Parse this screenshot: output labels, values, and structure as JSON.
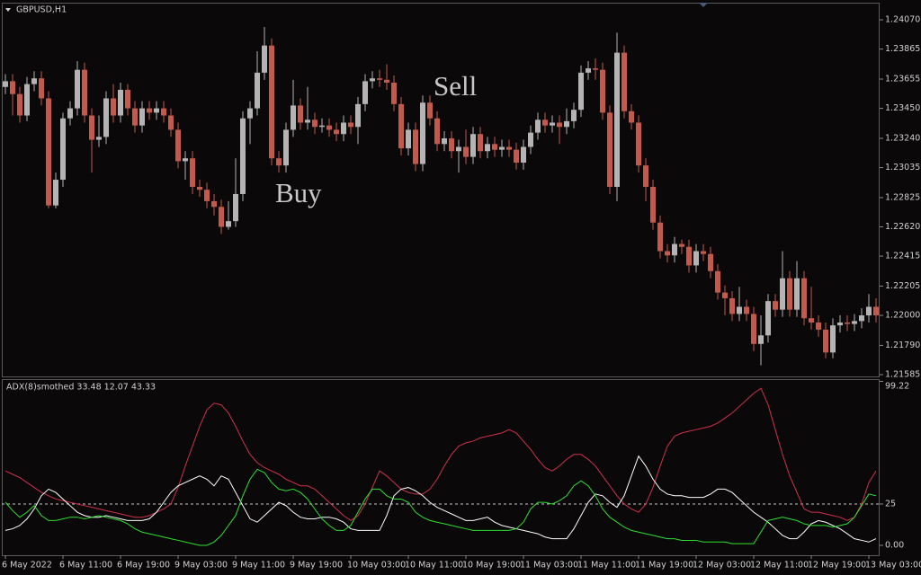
{
  "chart_data": [
    {
      "type": "candlestick",
      "title": "GBPUSD,H1",
      "annotations": [
        "Buy",
        "Sell"
      ],
      "up_color": "#b4b4b4",
      "down_color": "#c45a4c",
      "ylim": [
        1.21566,
        1.2419
      ],
      "yticks": [
        {
          "value": 1.2407,
          "label": "1.24070"
        },
        {
          "value": 1.23865,
          "label": "1.23865"
        },
        {
          "value": 1.23655,
          "label": "1.23655"
        },
        {
          "value": 1.2345,
          "label": "1.23450"
        },
        {
          "value": 1.2324,
          "label": "1.23240"
        },
        {
          "value": 1.23035,
          "label": "1.23035"
        },
        {
          "value": 1.22825,
          "label": "1.22825"
        },
        {
          "value": 1.2262,
          "label": "1.22620"
        },
        {
          "value": 1.22415,
          "label": "1.22415"
        },
        {
          "value": 1.22205,
          "label": "1.22205"
        },
        {
          "value": 1.22,
          "label": "1.22000"
        },
        {
          "value": 1.2179,
          "label": "1.21790"
        },
        {
          "value": 1.21585,
          "label": "1.21585"
        }
      ],
      "open": [
        1.236,
        1.2364,
        1.2355,
        1.234,
        1.2362,
        1.2366,
        1.2352,
        1.2277,
        1.2295,
        1.2338,
        1.2345,
        1.2372,
        1.234,
        1.2323,
        1.2325,
        1.2352,
        1.234,
        1.2358,
        1.2345,
        1.2333,
        1.2345,
        1.2342,
        1.2345,
        1.234,
        1.233,
        1.2308,
        1.231,
        1.229,
        1.2288,
        1.228,
        1.2276,
        1.2262,
        1.2266,
        1.2285,
        1.2338,
        1.2345,
        1.237,
        1.2389,
        1.231,
        1.2305,
        1.233,
        1.2347,
        1.2335,
        1.2337,
        1.2332,
        1.2333,
        1.233,
        1.2327,
        1.2335,
        1.2332,
        1.2348,
        1.2364,
        1.2366,
        1.2365,
        1.2363,
        1.2348,
        1.2317,
        1.233,
        1.2306,
        1.2349,
        1.2338,
        1.232,
        1.2324,
        1.2315,
        1.2318,
        1.2311,
        1.2327,
        1.2315,
        1.232,
        1.2316,
        1.2318,
        1.2316,
        1.2307,
        1.2318,
        1.2328,
        1.2337,
        1.2333,
        1.2335,
        1.2332,
        1.2336,
        1.2344,
        1.237,
        1.2373,
        1.2372,
        1.2342,
        1.229,
        1.2384,
        1.2343,
        1.2335,
        1.2305,
        1.229,
        1.2265,
        1.2245,
        1.2242,
        1.225,
        1.2248,
        1.2235,
        1.2245,
        1.2243,
        1.2231,
        1.2216,
        1.2212,
        1.2201,
        1.2206,
        1.2201,
        1.218,
        1.2186,
        1.221,
        1.2204,
        1.2226,
        1.2204,
        1.2226,
        1.2198,
        1.2195,
        1.219,
        1.2174,
        1.2193,
        1.2195,
        1.2194,
        1.2196,
        1.22,
        1.2206
      ],
      "high": [
        1.2369,
        1.2369,
        1.236,
        1.2367,
        1.2371,
        1.2371,
        1.2357,
        1.23,
        1.2342,
        1.235,
        1.2378,
        1.2377,
        1.2345,
        1.234,
        1.2357,
        1.2362,
        1.2363,
        1.2362,
        1.235,
        1.235,
        1.235,
        1.235,
        1.235,
        1.2345,
        1.2335,
        1.2315,
        1.2315,
        1.2295,
        1.2293,
        1.2285,
        1.2281,
        1.228,
        1.231,
        1.2343,
        1.235,
        1.2385,
        1.2402,
        1.2394,
        1.2315,
        1.2335,
        1.2365,
        1.2352,
        1.236,
        1.2342,
        1.2338,
        1.2338,
        1.2335,
        1.234,
        1.234,
        1.2353,
        1.2369,
        1.2371,
        1.2372,
        1.2376,
        1.2368,
        1.2353,
        1.2335,
        1.2335,
        1.2354,
        1.2354,
        1.2343,
        1.2329,
        1.2329,
        1.2323,
        1.233,
        1.2332,
        1.2332,
        1.2325,
        1.2325,
        1.2323,
        1.2323,
        1.2321,
        1.2323,
        1.2333,
        1.2342,
        1.2342,
        1.234,
        1.234,
        1.2345,
        1.2349,
        1.2375,
        1.2378,
        1.238,
        1.2377,
        1.2347,
        1.2398,
        1.2389,
        1.2348,
        1.234,
        1.231,
        1.2295,
        1.227,
        1.225,
        1.2255,
        1.2253,
        1.2253,
        1.225,
        1.225,
        1.2248,
        1.2236,
        1.2221,
        1.2217,
        1.222,
        1.2211,
        1.2206,
        1.22,
        1.2215,
        1.2215,
        1.2245,
        1.2231,
        1.2238,
        1.2231,
        1.222,
        1.22,
        1.2195,
        1.2198,
        1.22,
        1.22,
        1.2201,
        1.2205,
        1.2215,
        1.2212
      ],
      "low": [
        1.2355,
        1.234,
        1.2335,
        1.2336,
        1.2357,
        1.2347,
        1.2275,
        1.2275,
        1.229,
        1.2333,
        1.234,
        1.2335,
        1.23,
        1.2318,
        1.232,
        1.2335,
        1.2335,
        1.234,
        1.2328,
        1.2328,
        1.2337,
        1.2337,
        1.2335,
        1.2325,
        1.2303,
        1.2295,
        1.2285,
        1.2283,
        1.2275,
        1.227,
        1.2257,
        1.226,
        1.2262,
        1.228,
        1.232,
        1.234,
        1.2365,
        1.2305,
        1.23,
        1.23,
        1.2325,
        1.233,
        1.233,
        1.2327,
        1.2328,
        1.2325,
        1.2322,
        1.2322,
        1.2327,
        1.232,
        1.2343,
        1.2359,
        1.236,
        1.2358,
        1.2343,
        1.2312,
        1.2312,
        1.2301,
        1.2301,
        1.2333,
        1.2315,
        1.2315,
        1.231,
        1.23,
        1.2306,
        1.2306,
        1.231,
        1.231,
        1.2311,
        1.2311,
        1.2311,
        1.2302,
        1.2302,
        1.2313,
        1.2323,
        1.2328,
        1.2328,
        1.232,
        1.2327,
        1.2331,
        1.2339,
        1.2365,
        1.2365,
        1.2337,
        1.2285,
        1.228,
        1.2338,
        1.233,
        1.23,
        1.228,
        1.226,
        1.224,
        1.2237,
        1.2237,
        1.2243,
        1.223,
        1.223,
        1.2238,
        1.2226,
        1.2211,
        1.22,
        1.2196,
        1.2196,
        1.2196,
        1.2175,
        1.2165,
        1.2181,
        1.2199,
        1.2199,
        1.2199,
        1.2199,
        1.2193,
        1.219,
        1.2185,
        1.217,
        1.217,
        1.2188,
        1.2189,
        1.2189,
        1.2191,
        1.2195,
        1.2195
      ],
      "close": [
        1.2364,
        1.2355,
        1.234,
        1.2362,
        1.2366,
        1.2352,
        1.2277,
        1.2295,
        1.2338,
        1.2345,
        1.2372,
        1.234,
        1.2323,
        1.2325,
        1.2352,
        1.234,
        1.2358,
        1.2345,
        1.2333,
        1.2345,
        1.2342,
        1.2345,
        1.234,
        1.233,
        1.2308,
        1.231,
        1.229,
        1.2288,
        1.228,
        1.2276,
        1.2262,
        1.2266,
        1.2285,
        1.2338,
        1.2345,
        1.237,
        1.2389,
        1.231,
        1.2305,
        1.233,
        1.2347,
        1.2335,
        1.2337,
        1.2332,
        1.2333,
        1.233,
        1.2327,
        1.2335,
        1.2332,
        1.2348,
        1.2364,
        1.2366,
        1.2365,
        1.2363,
        1.2348,
        1.2317,
        1.233,
        1.2306,
        1.2349,
        1.2338,
        1.232,
        1.2324,
        1.2315,
        1.2318,
        1.2311,
        1.2327,
        1.2315,
        1.232,
        1.2316,
        1.2318,
        1.2316,
        1.2307,
        1.2318,
        1.2328,
        1.2337,
        1.2333,
        1.2335,
        1.2332,
        1.2336,
        1.2344,
        1.237,
        1.2373,
        1.2372,
        1.2342,
        1.229,
        1.2384,
        1.2343,
        1.2335,
        1.2305,
        1.229,
        1.2265,
        1.2245,
        1.2242,
        1.225,
        1.2248,
        1.2235,
        1.2245,
        1.2243,
        1.2231,
        1.2216,
        1.2212,
        1.2201,
        1.2206,
        1.2201,
        1.218,
        1.2186,
        1.221,
        1.2204,
        1.2226,
        1.2204,
        1.2226,
        1.2198,
        1.2195,
        1.219,
        1.2174,
        1.2193,
        1.2195,
        1.2194,
        1.2196,
        1.22,
        1.2206,
        1.22
      ]
    },
    {
      "type": "line",
      "title": "ADX(8)smothed 33.48 12.07 43.33",
      "ylim": [
        -6,
        100
      ],
      "yticks": [
        99.22,
        25,
        {
          "value": 0,
          "label": "0.00"
        }
      ],
      "levels": [
        25
      ],
      "categories": [
        "6 May 2022",
        null,
        null,
        null,
        null,
        null,
        null,
        null,
        "6 May 11:00",
        null,
        null,
        null,
        null,
        null,
        null,
        null,
        "6 May 19:00",
        null,
        null,
        null,
        null,
        null,
        null,
        null,
        "9 May 03:00",
        null,
        null,
        null,
        null,
        null,
        null,
        null,
        "9 May 11:00",
        null,
        null,
        null,
        null,
        null,
        null,
        null,
        "9 May 19:00",
        null,
        null,
        null,
        null,
        null,
        null,
        null,
        "10 May 03:00",
        null,
        null,
        null,
        null,
        null,
        null,
        null,
        "10 May 11:00",
        null,
        null,
        null,
        null,
        null,
        null,
        null,
        "10 May 19:00",
        null,
        null,
        null,
        null,
        null,
        null,
        null,
        "11 May 03:00",
        null,
        null,
        null,
        null,
        null,
        null,
        null,
        "11 May 11:00",
        null,
        null,
        null,
        null,
        null,
        null,
        null,
        "11 May 19:00",
        null,
        null,
        null,
        null,
        null,
        null,
        null,
        "12 May 03:00",
        null,
        null,
        null,
        null,
        null,
        null,
        null,
        "12 May 11:00",
        null,
        null,
        null,
        null,
        null,
        null,
        null,
        "12 May 19:00",
        null,
        null,
        null,
        null,
        null,
        null,
        null,
        "13 May 03:00",
        null
      ],
      "series": [
        {
          "color": "#d0304c",
          "values": [
            45,
            43,
            41,
            38,
            35,
            32,
            30,
            28,
            27,
            26,
            25,
            24,
            23,
            22,
            21,
            20,
            19,
            18,
            17,
            17,
            18,
            20,
            22,
            25,
            35,
            48,
            60,
            72,
            82,
            86,
            85,
            80,
            72,
            63,
            55,
            50,
            47,
            45,
            43,
            40,
            38,
            36,
            36,
            34,
            30,
            26,
            22,
            18,
            15,
            18,
            25,
            35,
            45,
            42,
            38,
            34,
            32,
            31,
            31,
            34,
            40,
            48,
            55,
            60,
            62,
            63,
            65,
            66,
            67,
            68,
            70,
            68,
            63,
            58,
            52,
            47,
            45,
            48,
            52,
            55,
            55,
            52,
            48,
            42,
            36,
            30,
            25,
            22,
            20,
            25,
            35,
            48,
            60,
            66,
            68,
            69,
            70,
            71,
            72,
            74,
            77,
            80,
            84,
            88,
            92,
            95,
            85,
            70,
            55,
            42,
            32,
            22,
            20,
            20,
            19,
            18,
            17,
            15,
            17,
            25,
            38,
            45
          ]
        },
        {
          "color": "#ffffff",
          "values": [
            9,
            10,
            12,
            16,
            22,
            30,
            34,
            32,
            28,
            24,
            20,
            18,
            17,
            17,
            18,
            17,
            16,
            15,
            15,
            15,
            16,
            20,
            26,
            32,
            36,
            38,
            40,
            42,
            40,
            36,
            42,
            40,
            32,
            24,
            16,
            14,
            18,
            22,
            26,
            24,
            20,
            17,
            16,
            16,
            17,
            17,
            16,
            14,
            10,
            9,
            9,
            9,
            9,
            18,
            30,
            34,
            35,
            33,
            30,
            26,
            23,
            21,
            19,
            17,
            15,
            15,
            16,
            17,
            14,
            12,
            11,
            10,
            9,
            8,
            7,
            5,
            4,
            4,
            4,
            10,
            18,
            26,
            31,
            30,
            26,
            23,
            30,
            42,
            54,
            48,
            40,
            34,
            31,
            30,
            30,
            29,
            29,
            29,
            31,
            34,
            34,
            32,
            28,
            24,
            20,
            17,
            14,
            10,
            6,
            4,
            4,
            8,
            13,
            15,
            14,
            12,
            10,
            7,
            4,
            3,
            2,
            4
          ]
        },
        {
          "color": "#2ee02e",
          "values": [
            26,
            21,
            17,
            20,
            24,
            18,
            15,
            15,
            16,
            17,
            17,
            16,
            17,
            18,
            17,
            16,
            15,
            13,
            10,
            8,
            7,
            6,
            5,
            4,
            3,
            2,
            1,
            0,
            0,
            2,
            6,
            12,
            18,
            30,
            40,
            46,
            44,
            38,
            34,
            33,
            34,
            32,
            28,
            22,
            16,
            12,
            9,
            9,
            12,
            20,
            28,
            34,
            34,
            30,
            28,
            28,
            26,
            20,
            17,
            15,
            14,
            13,
            12,
            11,
            10,
            9,
            9,
            9,
            9,
            9,
            9,
            10,
            14,
            22,
            26,
            26,
            25,
            27,
            30,
            36,
            39,
            36,
            30,
            22,
            17,
            14,
            11,
            9,
            8,
            7,
            6,
            5,
            4,
            4,
            3,
            3,
            3,
            2,
            2,
            2,
            2,
            1,
            1,
            1,
            1,
            8,
            15,
            16,
            17,
            16,
            15,
            13,
            12,
            12,
            12,
            11,
            12,
            13,
            17,
            24,
            31,
            30
          ]
        }
      ]
    }
  ]
}
